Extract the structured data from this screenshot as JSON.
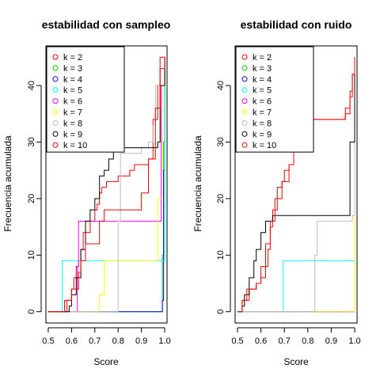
{
  "chart_data": [
    {
      "type": "line",
      "title": "estabilidad con sampleo",
      "xlabel": "Score",
      "ylabel": "Frecuencia acumulada",
      "xlim": [
        0.49,
        1.01
      ],
      "ylim": [
        -2,
        47
      ],
      "xticks": [
        "0.5",
        "0.6",
        "0.7",
        "0.8",
        "0.9",
        "1.0"
      ],
      "yticks": [
        "0",
        "10",
        "20",
        "30",
        "40"
      ],
      "legend_position": "top-left",
      "series": [
        {
          "name": "k = 2",
          "color": "#ff0000",
          "x": [
            0.5,
            0.58,
            0.6,
            0.61,
            0.62,
            0.63,
            0.64,
            0.65,
            0.68,
            0.7,
            0.71,
            0.72,
            0.73,
            0.75,
            0.8,
            0.85,
            0.87,
            0.93,
            0.95,
            0.97,
            0.98,
            1.0
          ],
          "y": [
            0,
            2,
            4,
            6,
            8,
            9,
            11,
            14,
            16,
            18,
            19,
            21,
            22,
            23,
            24,
            25,
            26,
            27,
            34,
            40,
            45,
            45
          ]
        },
        {
          "name": "k = 3",
          "color": "#00cd00",
          "x": [
            0.5,
            0.985,
            0.99,
            0.995,
            1.0
          ],
          "y": [
            0,
            0,
            10,
            30,
            45
          ]
        },
        {
          "name": "k = 4",
          "color": "#0000ff",
          "x": [
            0.5,
            0.985,
            0.99,
            0.995,
            1.0
          ],
          "y": [
            0,
            0,
            2,
            25,
            45
          ]
        },
        {
          "name": "k = 5",
          "color": "#00ffff",
          "x": [
            0.5,
            0.555,
            0.56,
            0.99,
            1.0
          ],
          "y": [
            0,
            0,
            9,
            9,
            45
          ]
        },
        {
          "name": "k = 6",
          "color": "#ff00ff",
          "x": [
            0.5,
            0.62,
            0.625,
            0.63,
            0.97,
            0.985,
            1.0
          ],
          "y": [
            0,
            0,
            8,
            16,
            16,
            40,
            45
          ]
        },
        {
          "name": "k = 7",
          "color": "#ffff00",
          "x": [
            0.5,
            0.7,
            0.72,
            0.74,
            0.96,
            0.97,
            0.99,
            1.0
          ],
          "y": [
            0,
            0,
            3,
            9,
            9,
            20,
            40,
            45
          ]
        },
        {
          "name": "k = 8",
          "color": "#bebebe",
          "x": [
            0.5,
            0.79,
            0.8,
            0.81,
            0.9,
            0.93,
            0.95,
            0.96,
            1.0
          ],
          "y": [
            0,
            0,
            16,
            28,
            29,
            30,
            33,
            40,
            45
          ]
        },
        {
          "name": "k = 9",
          "color": "#000000",
          "x": [
            0.5,
            0.59,
            0.6,
            0.62,
            0.64,
            0.66,
            0.68,
            0.7,
            0.72,
            0.74,
            0.76,
            0.78,
            0.9,
            0.97,
            0.98,
            1.0
          ],
          "y": [
            0,
            1,
            3,
            6,
            11,
            16,
            18,
            20,
            24,
            25,
            27,
            29,
            29,
            30,
            40,
            45
          ]
        },
        {
          "name": "k = 10",
          "color": "#ff0000",
          "x": [
            0.5,
            0.56,
            0.57,
            0.6,
            0.63,
            0.64,
            0.66,
            0.72,
            0.74,
            0.9,
            0.93,
            0.96,
            0.98,
            1.0
          ],
          "y": [
            0,
            0,
            2,
            4,
            7,
            9,
            12,
            16,
            18,
            21,
            27,
            36,
            43,
            45
          ]
        }
      ]
    },
    {
      "type": "line",
      "title": "estabilidad con ruido",
      "xlabel": "Score",
      "ylabel": "Frecuencia acumulada",
      "xlim": [
        0.49,
        1.01
      ],
      "ylim": [
        -2,
        47
      ],
      "xticks": [
        "0.5",
        "0.6",
        "0.7",
        "0.8",
        "0.9",
        "1.0"
      ],
      "yticks": [
        "0",
        "10",
        "20",
        "30",
        "40"
      ],
      "legend_position": "top-left",
      "series": [
        {
          "name": "k = 2",
          "color": "#ff0000",
          "x": [
            0.5,
            0.52,
            0.55,
            0.58,
            0.6,
            0.62,
            0.63,
            0.64,
            0.65,
            0.67,
            0.69,
            0.7,
            0.72,
            0.74,
            0.76,
            0.77,
            0.79,
            0.81,
            0.93,
            0.96,
            0.98,
            0.99,
            1.0
          ],
          "y": [
            0,
            2,
            4,
            5,
            6,
            8,
            11,
            15,
            18,
            22,
            23,
            25,
            26,
            29,
            30,
            32,
            34,
            34,
            34,
            35,
            38,
            42,
            45
          ]
        },
        {
          "name": "k = 3",
          "color": "#00cd00",
          "x": [
            0.5,
            0.99,
            1.0
          ],
          "y": [
            0,
            0,
            45
          ]
        },
        {
          "name": "k = 4",
          "color": "#0000ff",
          "x": [
            0.5,
            0.99,
            1.0
          ],
          "y": [
            0,
            0,
            45
          ]
        },
        {
          "name": "k = 5",
          "color": "#00ffff",
          "x": [
            0.5,
            0.69,
            0.695,
            0.99,
            1.0
          ],
          "y": [
            0,
            0,
            9,
            9,
            45
          ]
        },
        {
          "name": "k = 6",
          "color": "#ff00ff",
          "x": [
            0.5,
            0.99,
            1.0
          ],
          "y": [
            0,
            0,
            45
          ]
        },
        {
          "name": "k = 7",
          "color": "#ffff00",
          "x": [
            0.5,
            0.99,
            1.0
          ],
          "y": [
            0,
            0,
            45
          ]
        },
        {
          "name": "k = 8",
          "color": "#bebebe",
          "x": [
            0.5,
            0.82,
            0.83,
            0.84,
            0.99,
            1.0
          ],
          "y": [
            0,
            0,
            10,
            16,
            17,
            45
          ]
        },
        {
          "name": "k = 9",
          "color": "#000000",
          "x": [
            0.5,
            0.52,
            0.53,
            0.55,
            0.57,
            0.58,
            0.6,
            0.62,
            0.65,
            0.97,
            0.98,
            1.0
          ],
          "y": [
            0,
            1,
            3,
            6,
            9,
            11,
            14,
            16,
            17,
            17,
            30,
            45
          ]
        },
        {
          "name": "k = 10",
          "color": "#ff0000",
          "x": [
            0.5,
            0.52,
            0.54,
            0.58,
            0.6,
            0.62,
            0.64,
            0.66,
            0.69,
            0.72,
            0.74,
            0.76,
            0.78,
            0.8,
            0.92,
            0.96,
            0.98,
            0.99,
            1.0
          ],
          "y": [
            0,
            2,
            4,
            5,
            8,
            12,
            16,
            20,
            23,
            26,
            29,
            31,
            33,
            34,
            34,
            36,
            39,
            42,
            45
          ]
        }
      ]
    }
  ]
}
